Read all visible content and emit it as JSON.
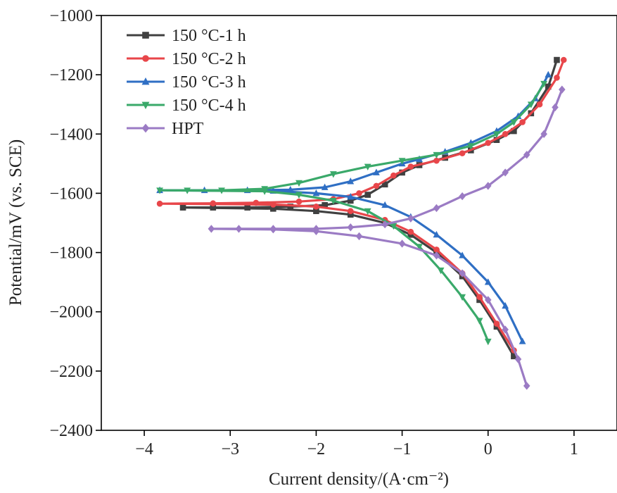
{
  "chart_data": {
    "type": "line",
    "title": "",
    "xlabel": "Current density/(A·cm⁻²)",
    "ylabel": "Potential/mV (vs. SCE)",
    "xlim": [
      -4.5,
      1.5
    ],
    "ylim": [
      -2400,
      -1000
    ],
    "xticks": [
      -4,
      -3,
      -2,
      -1,
      0,
      1
    ],
    "yticks": [
      -2400,
      -2200,
      -2000,
      -1800,
      -1600,
      -1400,
      -1200,
      -1000
    ],
    "xtick_labels": [
      "−4",
      "−3",
      "−2",
      "−1",
      "0",
      "1"
    ],
    "ytick_labels": [
      "−2400",
      "−2200",
      "−2000",
      "−1800",
      "−1600",
      "−1400",
      "−1200",
      "−1000"
    ],
    "grid": false,
    "legend_position": "top-left",
    "series": [
      {
        "name": "150 °C-1 h",
        "color": "#404040",
        "marker": "square",
        "points": [
          [
            0.8,
            -1150
          ],
          [
            0.7,
            -1240
          ],
          [
            0.5,
            -1330
          ],
          [
            0.3,
            -1390
          ],
          [
            0.1,
            -1420
          ],
          [
            -0.2,
            -1455
          ],
          [
            -0.5,
            -1480
          ],
          [
            -0.8,
            -1505
          ],
          [
            -1.0,
            -1530
          ],
          [
            -1.2,
            -1570
          ],
          [
            -1.4,
            -1605
          ],
          [
            -1.6,
            -1625
          ],
          [
            -1.9,
            -1640
          ],
          [
            -2.3,
            -1645
          ],
          [
            -2.8,
            -1648
          ],
          [
            -3.2,
            -1648
          ],
          [
            -3.55,
            -1648
          ],
          [
            -2.5,
            -1652
          ],
          [
            -2.0,
            -1660
          ],
          [
            -1.6,
            -1672
          ],
          [
            -1.2,
            -1700
          ],
          [
            -0.9,
            -1740
          ],
          [
            -0.6,
            -1800
          ],
          [
            -0.3,
            -1880
          ],
          [
            -0.1,
            -1960
          ],
          [
            0.1,
            -2050
          ],
          [
            0.3,
            -2150
          ]
        ]
      },
      {
        "name": "150 °C-2 h",
        "color": "#e8464a",
        "marker": "circle",
        "points": [
          [
            0.88,
            -1150
          ],
          [
            0.8,
            -1210
          ],
          [
            0.6,
            -1300
          ],
          [
            0.4,
            -1360
          ],
          [
            0.2,
            -1400
          ],
          [
            0.0,
            -1430
          ],
          [
            -0.3,
            -1465
          ],
          [
            -0.6,
            -1490
          ],
          [
            -0.9,
            -1510
          ],
          [
            -1.1,
            -1540
          ],
          [
            -1.3,
            -1575
          ],
          [
            -1.5,
            -1600
          ],
          [
            -1.8,
            -1620
          ],
          [
            -2.2,
            -1628
          ],
          [
            -2.7,
            -1632
          ],
          [
            -3.2,
            -1634
          ],
          [
            -3.82,
            -1635
          ],
          [
            -2.5,
            -1638
          ],
          [
            -2.0,
            -1645
          ],
          [
            -1.6,
            -1660
          ],
          [
            -1.2,
            -1690
          ],
          [
            -0.9,
            -1730
          ],
          [
            -0.6,
            -1790
          ],
          [
            -0.3,
            -1870
          ],
          [
            -0.1,
            -1950
          ],
          [
            0.1,
            -2040
          ],
          [
            0.3,
            -2130
          ]
        ]
      },
      {
        "name": "150 °C-3 h",
        "color": "#2f6fc4",
        "marker": "triangle-up",
        "points": [
          [
            0.7,
            -1200
          ],
          [
            0.55,
            -1280
          ],
          [
            0.35,
            -1340
          ],
          [
            0.1,
            -1390
          ],
          [
            -0.2,
            -1430
          ],
          [
            -0.5,
            -1460
          ],
          [
            -0.8,
            -1485
          ],
          [
            -1.0,
            -1500
          ],
          [
            -1.3,
            -1530
          ],
          [
            -1.6,
            -1560
          ],
          [
            -1.9,
            -1580
          ],
          [
            -2.3,
            -1588
          ],
          [
            -2.8,
            -1590
          ],
          [
            -3.3,
            -1590
          ],
          [
            -3.82,
            -1590
          ],
          [
            -2.5,
            -1592
          ],
          [
            -2.0,
            -1600
          ],
          [
            -1.6,
            -1612
          ],
          [
            -1.2,
            -1640
          ],
          [
            -0.9,
            -1680
          ],
          [
            -0.6,
            -1740
          ],
          [
            -0.3,
            -1810
          ],
          [
            0.0,
            -1900
          ],
          [
            0.2,
            -1980
          ],
          [
            0.4,
            -2100
          ]
        ]
      },
      {
        "name": "150 °C-4 h",
        "color": "#3aa96a",
        "marker": "triangle-down",
        "points": [
          [
            0.65,
            -1230
          ],
          [
            0.5,
            -1300
          ],
          [
            0.3,
            -1360
          ],
          [
            0.1,
            -1400
          ],
          [
            -0.2,
            -1440
          ],
          [
            -0.6,
            -1470
          ],
          [
            -1.0,
            -1490
          ],
          [
            -1.4,
            -1510
          ],
          [
            -1.8,
            -1535
          ],
          [
            -2.2,
            -1565
          ],
          [
            -2.6,
            -1585
          ],
          [
            -3.1,
            -1590
          ],
          [
            -3.5,
            -1590
          ],
          [
            -3.82,
            -1590
          ],
          [
            -2.6,
            -1593
          ],
          [
            -2.2,
            -1605
          ],
          [
            -1.8,
            -1625
          ],
          [
            -1.4,
            -1660
          ],
          [
            -1.1,
            -1710
          ],
          [
            -0.8,
            -1780
          ],
          [
            -0.55,
            -1860
          ],
          [
            -0.3,
            -1950
          ],
          [
            -0.1,
            -2030
          ],
          [
            0.0,
            -2100
          ]
        ]
      },
      {
        "name": "HPT",
        "color": "#9b7bc4",
        "marker": "diamond",
        "points": [
          [
            0.86,
            -1250
          ],
          [
            0.78,
            -1310
          ],
          [
            0.65,
            -1400
          ],
          [
            0.45,
            -1470
          ],
          [
            0.2,
            -1530
          ],
          [
            0.0,
            -1575
          ],
          [
            -0.3,
            -1610
          ],
          [
            -0.6,
            -1650
          ],
          [
            -0.9,
            -1685
          ],
          [
            -1.2,
            -1705
          ],
          [
            -1.6,
            -1715
          ],
          [
            -2.0,
            -1720
          ],
          [
            -2.5,
            -1720
          ],
          [
            -2.9,
            -1720
          ],
          [
            -3.22,
            -1720
          ],
          [
            -2.5,
            -1722
          ],
          [
            -2.0,
            -1728
          ],
          [
            -1.5,
            -1745
          ],
          [
            -1.0,
            -1770
          ],
          [
            -0.6,
            -1810
          ],
          [
            -0.3,
            -1870
          ],
          [
            0.0,
            -1960
          ],
          [
            0.2,
            -2060
          ],
          [
            0.35,
            -2160
          ],
          [
            0.45,
            -2250
          ]
        ]
      }
    ]
  }
}
